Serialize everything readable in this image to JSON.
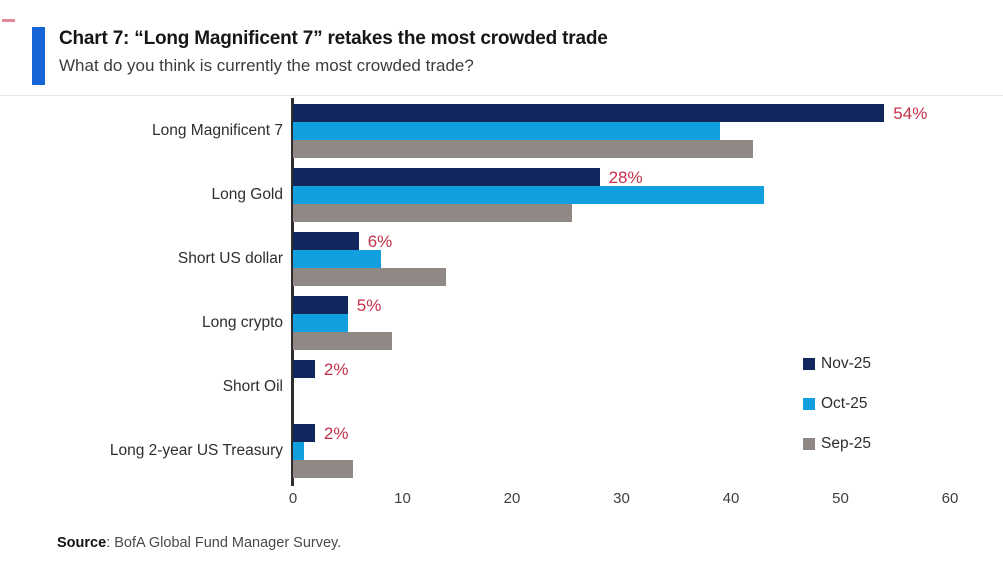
{
  "header": {
    "title": "Chart 7: “Long Magnificent 7” retakes the most crowded trade",
    "subtitle": "What do you think is currently the most crowded trade?",
    "accent_color": "#1565d8"
  },
  "chart_data": {
    "type": "bar",
    "orientation": "horizontal",
    "title": "Chart 7: “Long Magnificent 7” retakes the most crowded trade",
    "subtitle": "What do you think is currently the most crowded trade?",
    "categories": [
      "Long Magnificent 7",
      "Long Gold",
      "Short US dollar",
      "Long crypto",
      "Short Oil",
      "Long 2-year US Treasury"
    ],
    "series": [
      {
        "name": "Nov-25",
        "color": "#12265e",
        "values": [
          54,
          28,
          6,
          5,
          2,
          2
        ]
      },
      {
        "name": "Oct-25",
        "color": "#119fdf",
        "values": [
          39,
          43,
          8,
          5,
          0,
          1
        ]
      },
      {
        "name": "Sep-25",
        "color": "#8f8885",
        "values": [
          42,
          25.5,
          14,
          9,
          0,
          5.5
        ]
      }
    ],
    "data_labels": [
      "54%",
      "28%",
      "6%",
      "5%",
      "2%",
      "2%"
    ],
    "data_label_color": "#c5304a",
    "xlabel": "",
    "ylabel": "",
    "xlim": [
      0,
      60
    ],
    "xticks": [
      0,
      10,
      20,
      30,
      40,
      50,
      60
    ],
    "grid": false,
    "legend_position": "right",
    "axis_color": "#2e2e2e"
  },
  "footer": {
    "source_label": "Source",
    "source_text": ": BofA Global Fund Manager Survey."
  }
}
